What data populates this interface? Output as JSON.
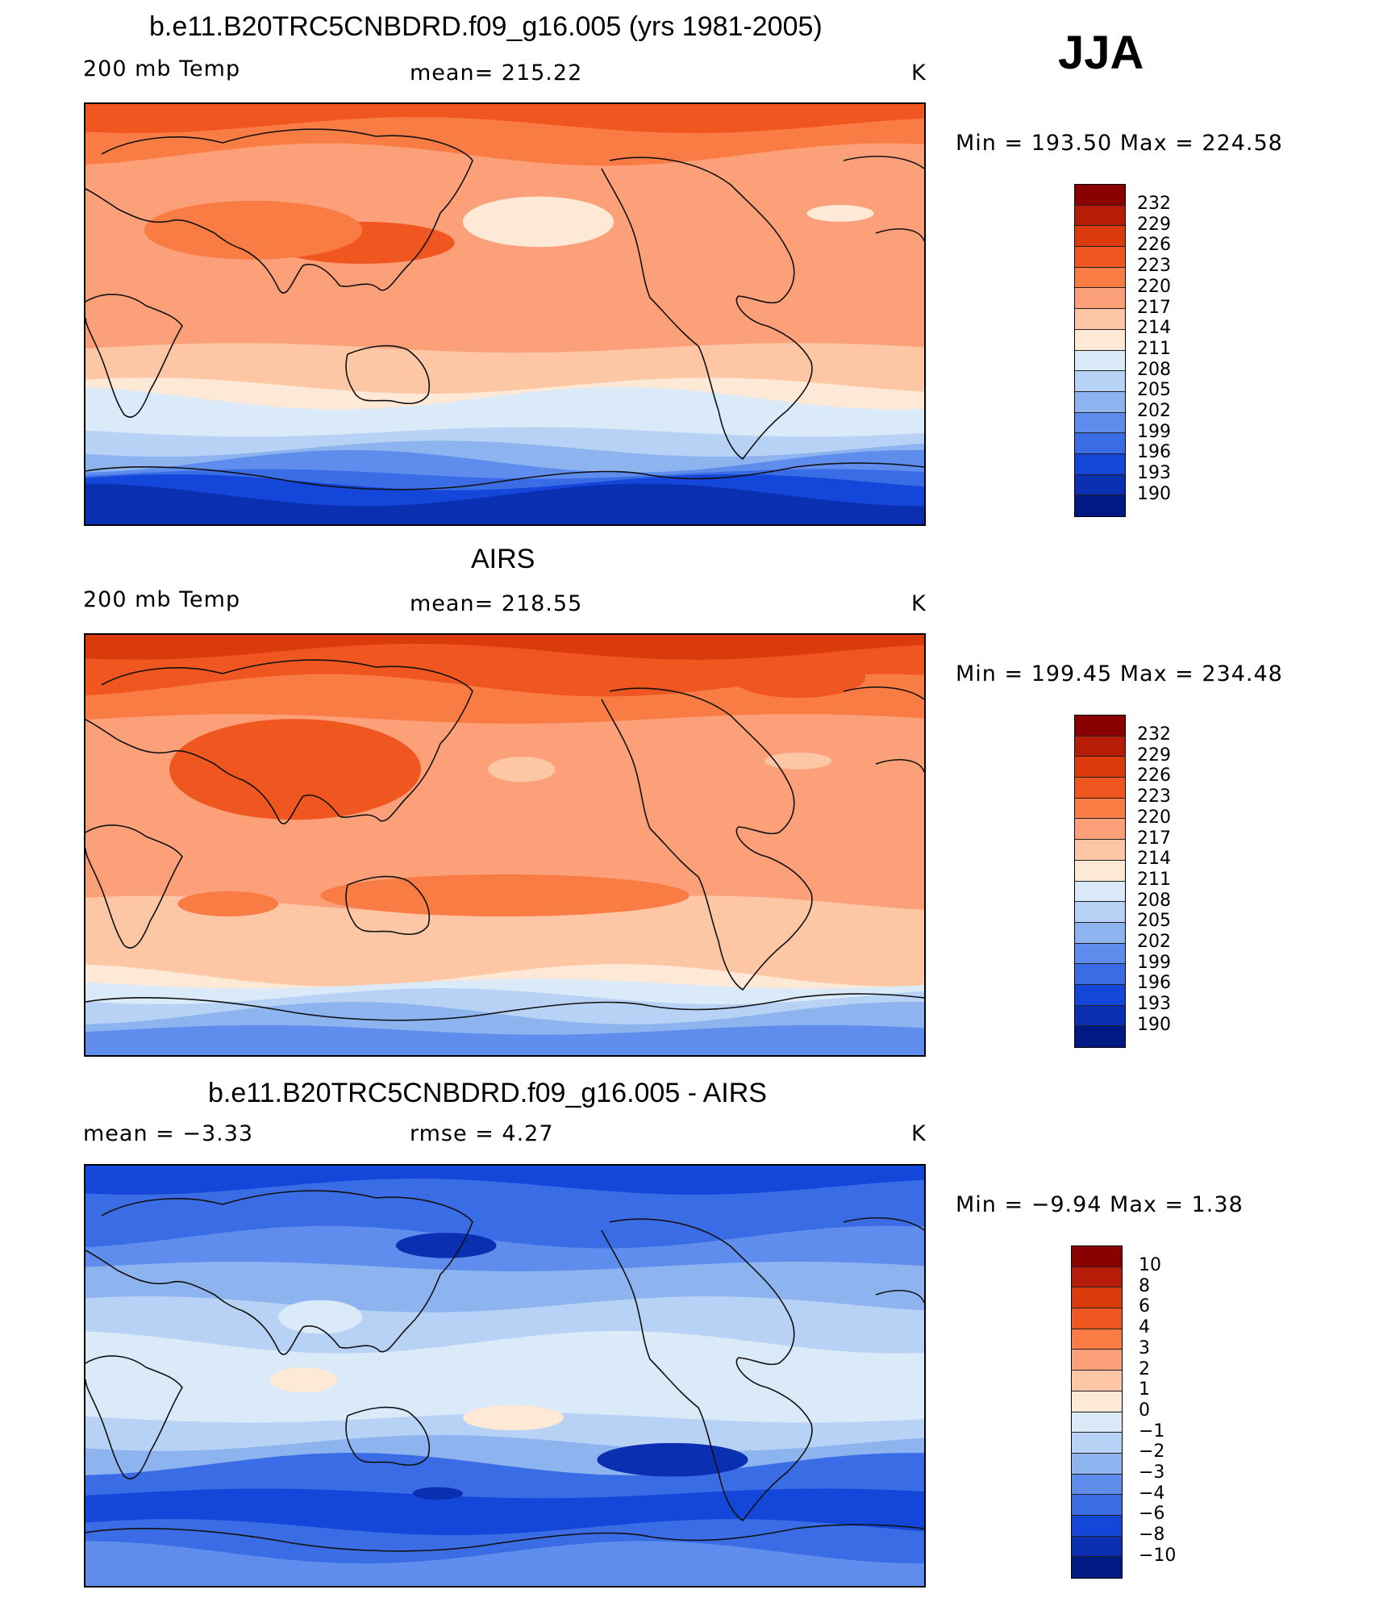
{
  "season": "JJA",
  "panels": [
    {
      "id": "model",
      "title": "b.e11.B20TRC5CNBDRD.f09_g16.005 (yrs 1981-2005)",
      "left_label": "200 mb Temp",
      "center_label": "mean=  215.22",
      "units": "K",
      "minmax": "Min  =  193.50  Max  =  224.58",
      "colorbar_labels": [
        "232",
        "229",
        "226",
        "223",
        "220",
        "217",
        "214",
        "211",
        "208",
        "205",
        "202",
        "199",
        "196",
        "193",
        "190"
      ]
    },
    {
      "id": "obs",
      "title": "AIRS",
      "left_label": "200 mb Temp",
      "center_label": "mean=  218.55",
      "units": "K",
      "minmax": "Min  =  199.45  Max  =  234.48",
      "colorbar_labels": [
        "232",
        "229",
        "226",
        "223",
        "220",
        "217",
        "214",
        "211",
        "208",
        "205",
        "202",
        "199",
        "196",
        "193",
        "190"
      ]
    },
    {
      "id": "diff",
      "title": "b.e11.B20TRC5CNBDRD.f09_g16.005 - AIRS",
      "left_label": "mean  =    −3.33",
      "center_label": "rmse  =     4.27",
      "units": "K",
      "minmax": "Min  =    −9.94  Max  =     1.38",
      "colorbar_labels": [
        "10",
        "8",
        "6",
        "4",
        "3",
        "2",
        "1",
        "0",
        "−1",
        "−2",
        "−3",
        "−4",
        "−6",
        "−8",
        "−10"
      ]
    }
  ],
  "colors": {
    "scale": [
      "#8a0000",
      "#b51d08",
      "#da3a0c",
      "#f0561f",
      "#fa7c45",
      "#fca07a",
      "#fdc7a6",
      "#fee8d6",
      "#dbeaf8",
      "#b7d2f4",
      "#8db4ef",
      "#5f8ded",
      "#3a6ce6",
      "#1446d9",
      "#0b2fb1",
      "#001a85"
    ],
    "map_outline": "#000000",
    "coast": "#111111"
  }
}
